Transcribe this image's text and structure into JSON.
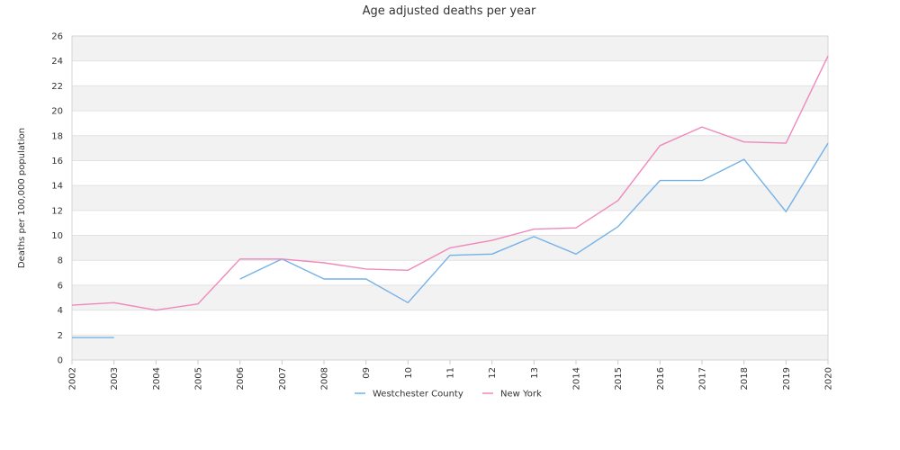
{
  "chart_data": {
    "type": "line",
    "title": "Age adjusted deaths per year",
    "xlabel": "",
    "ylabel": "Deaths per 100,000 population",
    "categories": [
      "2002",
      "2003",
      "2004",
      "2005",
      "2006",
      "2007",
      "2008",
      "09",
      "10",
      "11",
      "12",
      "13",
      "2014",
      "2015",
      "2016",
      "2017",
      "2018",
      "2019",
      "2020"
    ],
    "ylim": [
      0,
      26
    ],
    "yticks": [
      "0",
      "2",
      "4",
      "6",
      "8",
      "10",
      "12",
      "14",
      "16",
      "18",
      "20",
      "22",
      "24",
      "26"
    ],
    "grid": "alternating horizontal bands",
    "legend_position": "bottom",
    "series": [
      {
        "name": "Westchester County",
        "color": "#74b1e8",
        "values": [
          1.8,
          1.8,
          null,
          null,
          6.5,
          8.1,
          6.5,
          6.5,
          4.6,
          8.4,
          8.5,
          9.9,
          8.5,
          10.7,
          14.4,
          14.4,
          16.1,
          11.9,
          17.4
        ]
      },
      {
        "name": "New York",
        "color": "#ef89bc",
        "values": [
          4.4,
          4.6,
          4.0,
          4.5,
          8.1,
          8.1,
          7.8,
          7.3,
          7.2,
          9.0,
          9.6,
          10.5,
          10.6,
          12.8,
          17.2,
          18.7,
          17.5,
          17.4,
          24.4
        ]
      }
    ]
  }
}
